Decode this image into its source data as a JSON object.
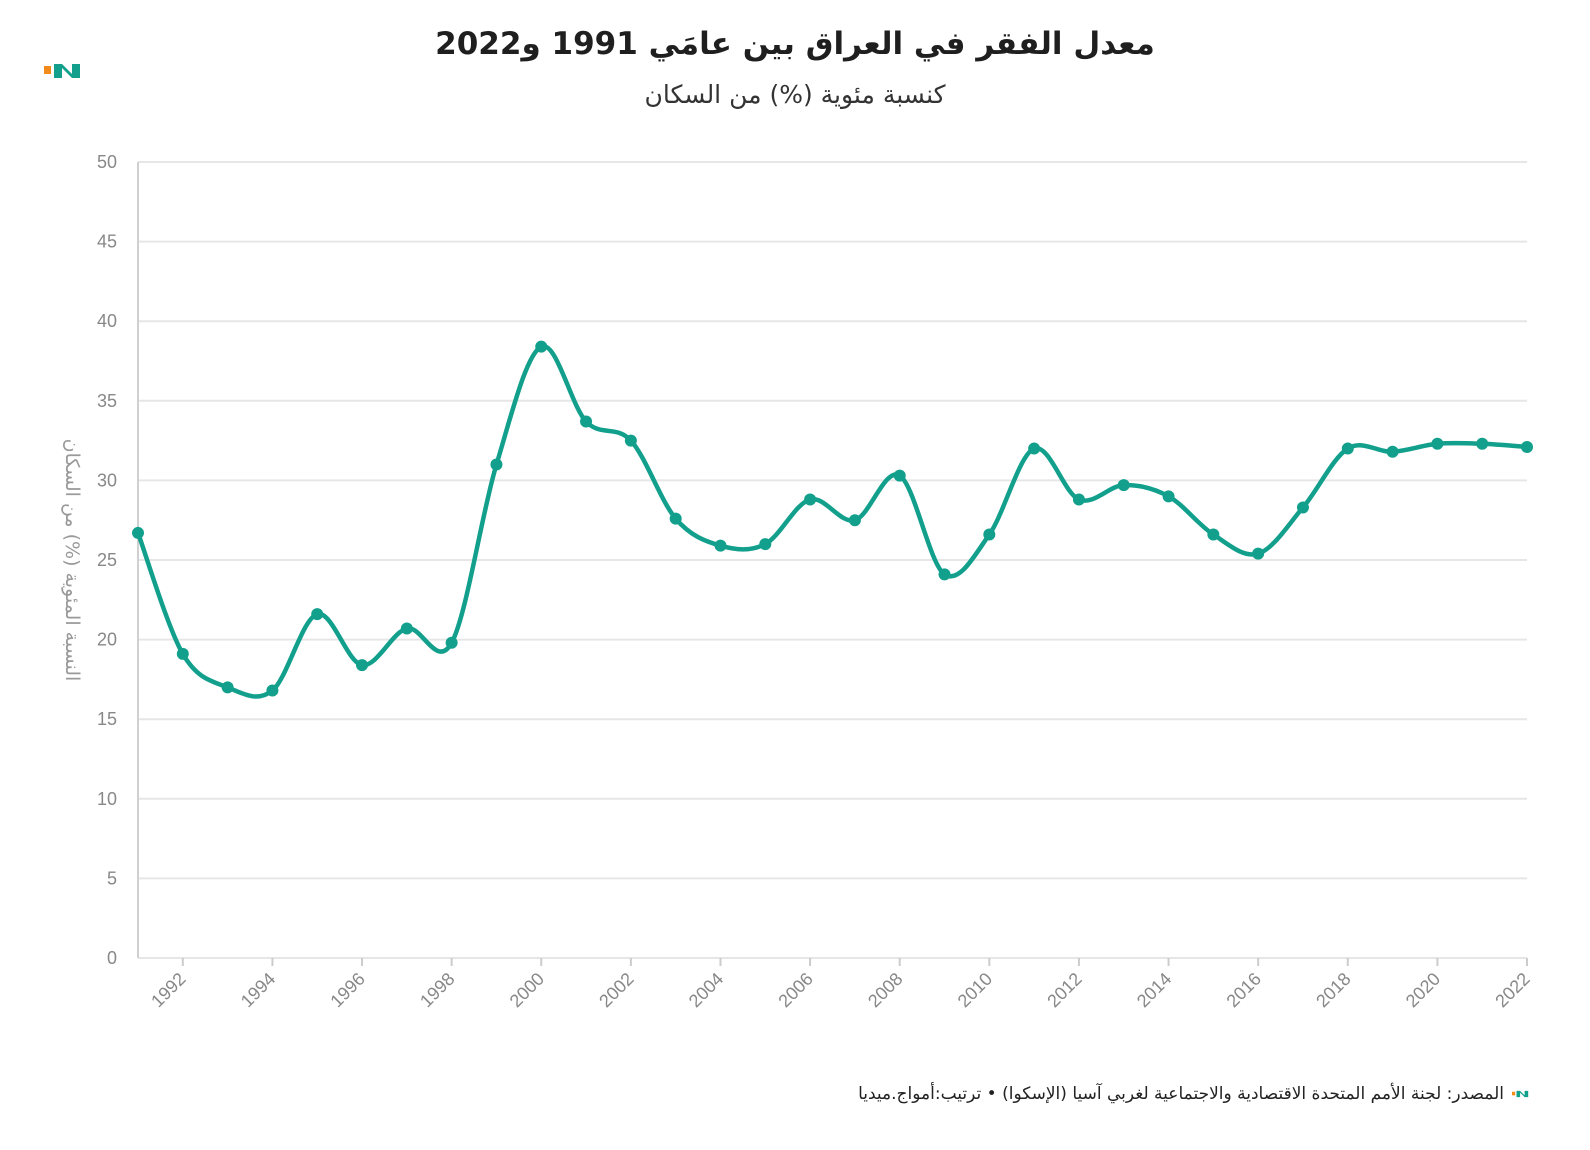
{
  "header": {
    "title": "معدل الفقر في العراق بين عامَي 1991 و2022",
    "subtitle": "كنسبة مئوية (%) من السكان"
  },
  "footer": {
    "source": "المصدر: لجنة الأمم المتحدة الاقتصادية والاجتماعية لغربي آسيا (الإسكوا) • ترتيب:أمواج.ميديا"
  },
  "colors": {
    "line": "#12a08d",
    "logo_orange": "#f28b1c",
    "logo_teal": "#12a08d",
    "grid": "#e6e6e6"
  },
  "chart_data": {
    "type": "line",
    "title": "معدل الفقر في العراق بين عامَي 1991 و2022",
    "subtitle": "كنسبة مئوية (%) من السكان",
    "xlabel": "",
    "ylabel": "النسبة المئوية (%) من السكان",
    "ylim": [
      0,
      50
    ],
    "yticks": [
      0,
      5,
      10,
      15,
      20,
      25,
      30,
      35,
      40,
      45,
      50
    ],
    "xlim": [
      1991,
      2022
    ],
    "xticks": [
      1992,
      1994,
      1996,
      1998,
      2000,
      2002,
      2004,
      2006,
      2008,
      2010,
      2012,
      2014,
      2016,
      2018,
      2020,
      2022
    ],
    "grid": true,
    "series": [
      {
        "x": [
          1991,
          1992,
          1993,
          1994,
          1995,
          1996,
          1997,
          1998,
          1999,
          2000,
          2001,
          2002,
          2003,
          2004,
          2005,
          2006,
          2007,
          2008,
          2009,
          2010,
          2011,
          2012,
          2013,
          2014,
          2015,
          2016,
          2017,
          2018,
          2019,
          2020,
          2021,
          2022
        ],
        "values": [
          26.7,
          19.1,
          17.0,
          16.8,
          21.6,
          18.4,
          20.7,
          19.8,
          31.0,
          38.4,
          33.7,
          32.5,
          27.6,
          25.9,
          26.0,
          28.8,
          27.5,
          30.3,
          24.1,
          26.6,
          32.0,
          28.8,
          29.7,
          29.0,
          26.6,
          25.4,
          28.3,
          32.0,
          31.8,
          32.3,
          32.3,
          32.1
        ]
      }
    ]
  }
}
